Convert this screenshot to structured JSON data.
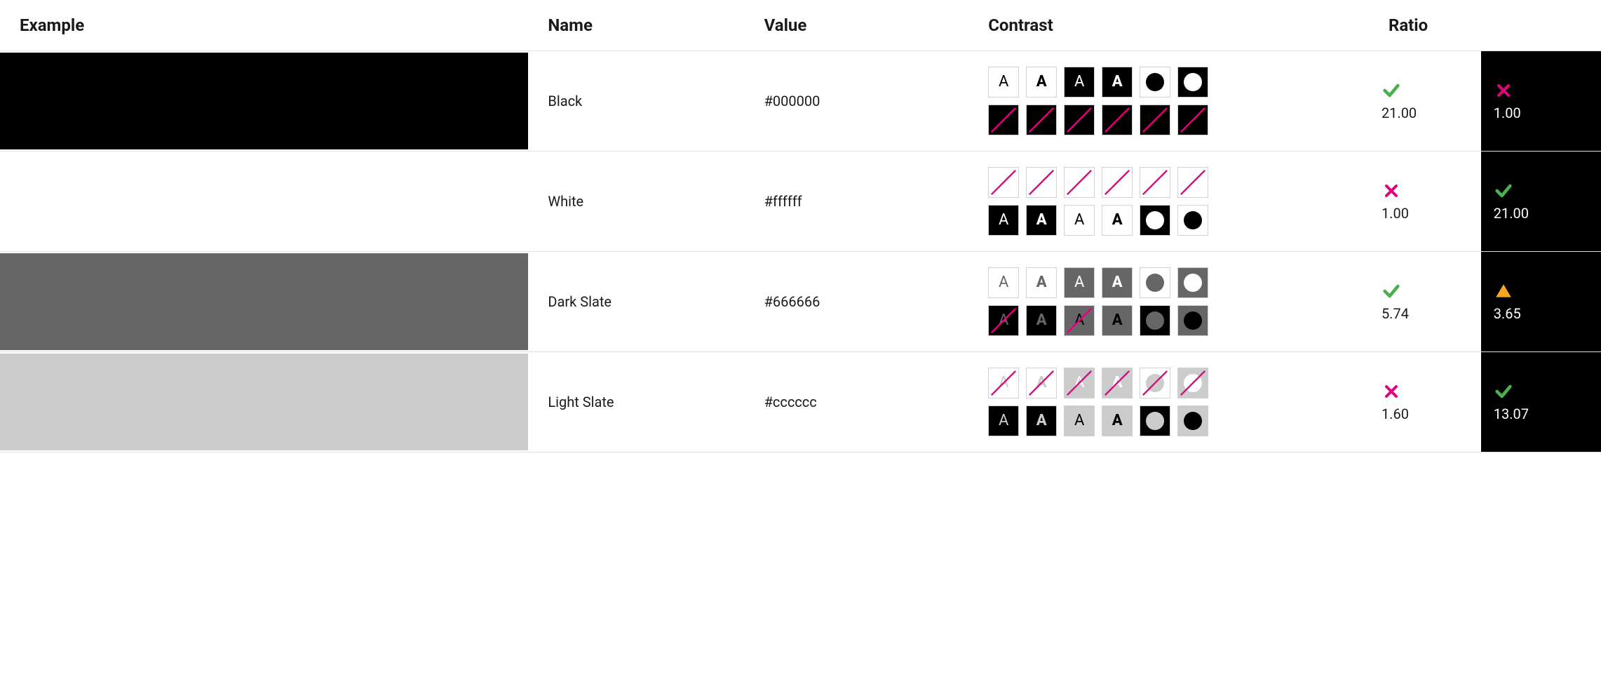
{
  "colors": {
    "pass": "#4caf50",
    "fail": "#e6007e",
    "warn": "#f5a623",
    "slash": "#e6007e",
    "border": "#d0d0d0",
    "ratio_dark_bg": "#000000"
  },
  "header": {
    "example": "Example",
    "name": "Name",
    "value": "Value",
    "contrast": "Contrast",
    "ratio": "Ratio"
  },
  "rows": [
    {
      "name": "Black",
      "value": "#000000",
      "swatch": "#000000",
      "ratio_light": {
        "status": "pass",
        "value": "21.00"
      },
      "ratio_dark": {
        "status": "fail",
        "value": "1.00"
      },
      "tiles": [
        [
          {
            "bg": "#ffffff",
            "glyph": "A",
            "fg": "#000000",
            "bold": false,
            "slash": false
          },
          {
            "bg": "#ffffff",
            "glyph": "A",
            "fg": "#000000",
            "bold": true,
            "slash": false
          },
          {
            "bg": "#000000",
            "glyph": "A",
            "fg": "#ffffff",
            "bold": false,
            "slash": false
          },
          {
            "bg": "#000000",
            "glyph": "A",
            "fg": "#ffffff",
            "bold": true,
            "slash": false
          },
          {
            "bg": "#ffffff",
            "circle": "#000000",
            "slash": false
          },
          {
            "bg": "#000000",
            "circle": "#ffffff",
            "slash": false
          }
        ],
        [
          {
            "bg": "#000000",
            "glyph": "A",
            "fg": "#000000",
            "bold": false,
            "slash": true
          },
          {
            "bg": "#000000",
            "glyph": "A",
            "fg": "#000000",
            "bold": true,
            "slash": true
          },
          {
            "bg": "#000000",
            "glyph": "A",
            "fg": "#000000",
            "bold": false,
            "slash": true
          },
          {
            "bg": "#000000",
            "glyph": "A",
            "fg": "#000000",
            "bold": true,
            "slash": true
          },
          {
            "bg": "#000000",
            "circle": "#000000",
            "slash": true
          },
          {
            "bg": "#000000",
            "circle": "#000000",
            "slash": true
          }
        ]
      ]
    },
    {
      "name": "White",
      "value": "#ffffff",
      "swatch": "#ffffff",
      "ratio_light": {
        "status": "fail",
        "value": "1.00"
      },
      "ratio_dark": {
        "status": "pass",
        "value": "21.00"
      },
      "tiles": [
        [
          {
            "bg": "#ffffff",
            "glyph": "A",
            "fg": "#ffffff",
            "bold": false,
            "slash": true
          },
          {
            "bg": "#ffffff",
            "glyph": "A",
            "fg": "#ffffff",
            "bold": true,
            "slash": true
          },
          {
            "bg": "#ffffff",
            "glyph": "A",
            "fg": "#ffffff",
            "bold": false,
            "slash": true
          },
          {
            "bg": "#ffffff",
            "glyph": "A",
            "fg": "#ffffff",
            "bold": true,
            "slash": true
          },
          {
            "bg": "#ffffff",
            "circle": "#ffffff",
            "slash": true
          },
          {
            "bg": "#ffffff",
            "circle": "#ffffff",
            "slash": true
          }
        ],
        [
          {
            "bg": "#000000",
            "glyph": "A",
            "fg": "#ffffff",
            "bold": false,
            "slash": false
          },
          {
            "bg": "#000000",
            "glyph": "A",
            "fg": "#ffffff",
            "bold": true,
            "slash": false
          },
          {
            "bg": "#ffffff",
            "glyph": "A",
            "fg": "#000000",
            "bold": false,
            "slash": false
          },
          {
            "bg": "#ffffff",
            "glyph": "A",
            "fg": "#000000",
            "bold": true,
            "slash": false
          },
          {
            "bg": "#000000",
            "circle": "#ffffff",
            "slash": false
          },
          {
            "bg": "#ffffff",
            "circle": "#000000",
            "slash": false
          }
        ]
      ]
    },
    {
      "name": "Dark Slate",
      "value": "#666666",
      "swatch": "#666666",
      "ratio_light": {
        "status": "pass",
        "value": "5.74"
      },
      "ratio_dark": {
        "status": "warn",
        "value": "3.65"
      },
      "tiles": [
        [
          {
            "bg": "#ffffff",
            "glyph": "A",
            "fg": "#666666",
            "bold": false,
            "slash": false
          },
          {
            "bg": "#ffffff",
            "glyph": "A",
            "fg": "#666666",
            "bold": true,
            "slash": false
          },
          {
            "bg": "#666666",
            "glyph": "A",
            "fg": "#ffffff",
            "bold": false,
            "slash": false
          },
          {
            "bg": "#666666",
            "glyph": "A",
            "fg": "#ffffff",
            "bold": true,
            "slash": false
          },
          {
            "bg": "#ffffff",
            "circle": "#666666",
            "slash": false
          },
          {
            "bg": "#666666",
            "circle": "#ffffff",
            "slash": false
          }
        ],
        [
          {
            "bg": "#000000",
            "glyph": "A",
            "fg": "#666666",
            "bold": false,
            "slash": true
          },
          {
            "bg": "#000000",
            "glyph": "A",
            "fg": "#666666",
            "bold": true,
            "slash": false
          },
          {
            "bg": "#666666",
            "glyph": "A",
            "fg": "#000000",
            "bold": false,
            "slash": true
          },
          {
            "bg": "#666666",
            "glyph": "A",
            "fg": "#000000",
            "bold": true,
            "slash": false
          },
          {
            "bg": "#000000",
            "circle": "#666666",
            "slash": false
          },
          {
            "bg": "#666666",
            "circle": "#000000",
            "slash": false
          }
        ]
      ]
    },
    {
      "name": "Light Slate",
      "value": "#cccccc",
      "swatch": "#cccccc",
      "ratio_light": {
        "status": "fail",
        "value": "1.60"
      },
      "ratio_dark": {
        "status": "pass",
        "value": "13.07"
      },
      "tiles": [
        [
          {
            "bg": "#ffffff",
            "glyph": "A",
            "fg": "#cccccc",
            "bold": false,
            "slash": true
          },
          {
            "bg": "#ffffff",
            "glyph": "A",
            "fg": "#cccccc",
            "bold": true,
            "slash": true
          },
          {
            "bg": "#cccccc",
            "glyph": "A",
            "fg": "#ffffff",
            "bold": false,
            "slash": true
          },
          {
            "bg": "#cccccc",
            "glyph": "A",
            "fg": "#ffffff",
            "bold": true,
            "slash": true
          },
          {
            "bg": "#ffffff",
            "circle": "#cccccc",
            "slash": true
          },
          {
            "bg": "#cccccc",
            "circle": "#ffffff",
            "slash": true
          }
        ],
        [
          {
            "bg": "#000000",
            "glyph": "A",
            "fg": "#cccccc",
            "bold": false,
            "slash": false
          },
          {
            "bg": "#000000",
            "glyph": "A",
            "fg": "#cccccc",
            "bold": true,
            "slash": false
          },
          {
            "bg": "#cccccc",
            "glyph": "A",
            "fg": "#000000",
            "bold": false,
            "slash": false
          },
          {
            "bg": "#cccccc",
            "glyph": "A",
            "fg": "#000000",
            "bold": true,
            "slash": false
          },
          {
            "bg": "#000000",
            "circle": "#cccccc",
            "slash": false
          },
          {
            "bg": "#cccccc",
            "circle": "#000000",
            "slash": false
          }
        ]
      ]
    }
  ]
}
